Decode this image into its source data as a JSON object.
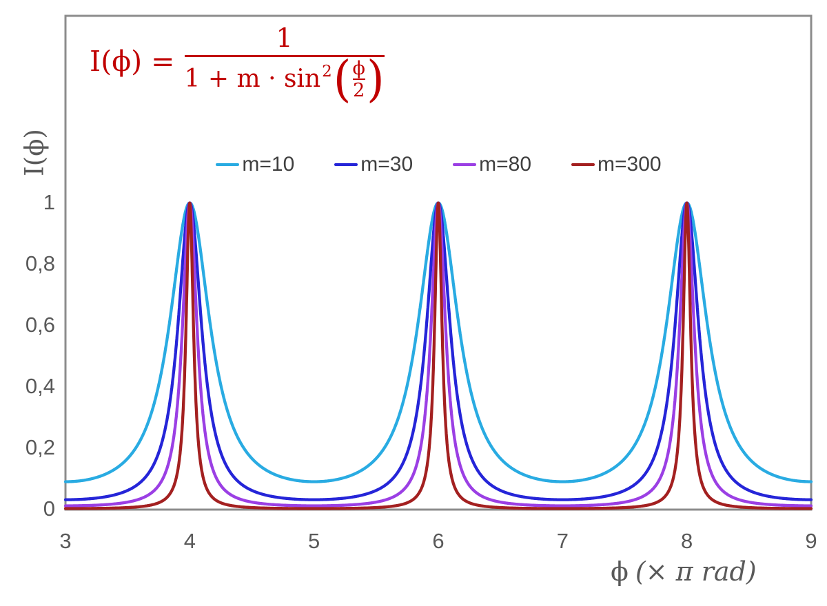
{
  "chart_data": {
    "type": "line",
    "description": "Airy function / Fabry-Perot interference transmission curves for four finesse coefficients",
    "formula": {
      "text": "I(ϕ) = 1 / (1 + m·sin²(ϕ/2))",
      "lhs": "I(ϕ) =",
      "numerator": "1",
      "denominator_prefix": "1 + m · sin",
      "denominator_sup": "2",
      "open_paren": "(",
      "inner_numerator": "ϕ",
      "inner_denominator": "2",
      "close_paren": ")",
      "color": "#C00000"
    },
    "xlabel": {
      "symbol": "ϕ",
      "units": "(× π rad)"
    },
    "ylabel": "I(ϕ)",
    "x_range": [
      3,
      9
    ],
    "ylim": [
      0,
      1.61
    ],
    "y_max_labeled": 1,
    "grid": false,
    "legend_position": "top-center",
    "background": "#FFFFFF",
    "axis_color": "#8C8C8C",
    "tick_label_color": "#595959",
    "legend_text_color": "#3F3F3F",
    "x_ticks": [
      {
        "value": 3,
        "label": "3"
      },
      {
        "value": 4,
        "label": "4"
      },
      {
        "value": 5,
        "label": "5"
      },
      {
        "value": 6,
        "label": "6"
      },
      {
        "value": 7,
        "label": "7"
      },
      {
        "value": 8,
        "label": "8"
      },
      {
        "value": 9,
        "label": "9"
      }
    ],
    "y_ticks": [
      {
        "value": 0,
        "label": "0"
      },
      {
        "value": 0.2,
        "label": "0,2"
      },
      {
        "value": 0.4,
        "label": "0,4"
      },
      {
        "value": 0.6,
        "label": "0,6"
      },
      {
        "value": 0.8,
        "label": "0,8"
      },
      {
        "value": 1,
        "label": "1"
      }
    ],
    "series": [
      {
        "label": "m=10",
        "m": 10,
        "color": "#29ABE2"
      },
      {
        "label": "m=30",
        "m": 30,
        "color": "#2525D8"
      },
      {
        "label": "m=80",
        "m": 80,
        "color": "#9B3FE4"
      },
      {
        "label": "m=300",
        "m": 300,
        "color": "#A32020"
      }
    ],
    "peaks": {
      "x_positions": [
        4,
        6,
        8
      ],
      "peak_value": 1
    },
    "minima": {
      "x_positions": [
        3,
        5,
        7,
        9
      ],
      "values_by_series": {
        "m=10": 0.0909,
        "m=30": 0.0323,
        "m=80": 0.0123,
        "m=300": 0.0033
      }
    }
  }
}
